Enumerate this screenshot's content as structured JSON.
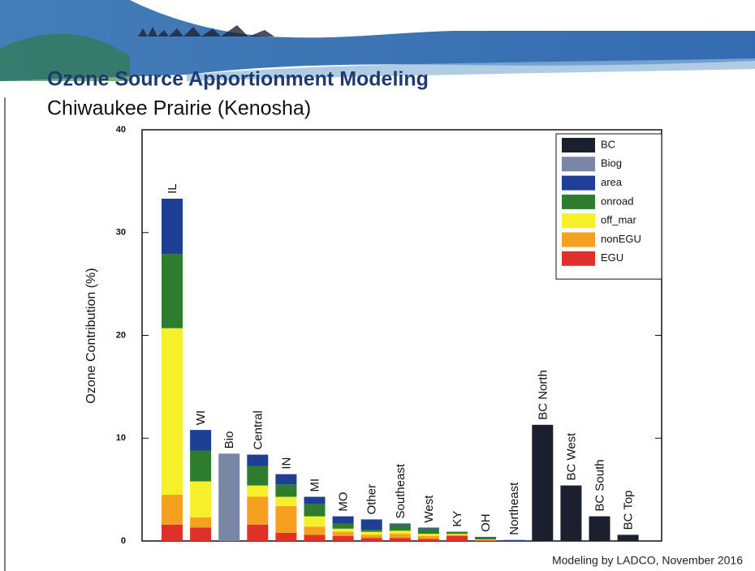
{
  "chart_data": {
    "type": "stacked-bar",
    "title": "Ozone Source Apportionment Modeling",
    "subtitle": "Chiwaukee Prairie (Kenosha)",
    "y_label": "Ozone Contribution (%)",
    "footer": "Modeling by LADCO, November 2016",
    "categories": [
      "IL",
      "WI",
      "Bio",
      "Central",
      "IN",
      "MI",
      "MO",
      "Other",
      "Southeast",
      "West",
      "KY",
      "OH",
      "Northeast",
      "BC North",
      "BC West",
      "BC South",
      "BC Top"
    ],
    "series": [
      {
        "name": "EGU",
        "color": "#e0302a",
        "values": [
          1.6,
          1.3,
          0,
          1.6,
          0.8,
          0.6,
          0.5,
          0.3,
          0.3,
          0.2,
          0.5,
          0.05,
          0,
          0,
          0,
          0,
          0
        ]
      },
      {
        "name": "nonEGU",
        "color": "#f5a020",
        "values": [
          2.9,
          1.0,
          0,
          2.7,
          2.6,
          0.8,
          0.4,
          0.3,
          0.4,
          0.3,
          0.1,
          0.05,
          0,
          0,
          0,
          0,
          0
        ]
      },
      {
        "name": "off_mar",
        "color": "#f5f02a",
        "values": [
          16.2,
          3.5,
          0,
          1.1,
          0.9,
          1.0,
          0.3,
          0.3,
          0.3,
          0.2,
          0.1,
          0.05,
          0,
          0,
          0,
          0,
          0
        ]
      },
      {
        "name": "onroad",
        "color": "#2e7d2e",
        "values": [
          7.2,
          3.0,
          0,
          1.9,
          1.2,
          1.2,
          0.5,
          0.2,
          0.6,
          0.5,
          0.2,
          0.2,
          0,
          0,
          0,
          0,
          0
        ]
      },
      {
        "name": "area",
        "color": "#1f3f96",
        "values": [
          5.4,
          2.0,
          0,
          1.1,
          1.0,
          0.7,
          0.7,
          1.0,
          0.1,
          0.1,
          0,
          0.05,
          0.1,
          0,
          0,
          0,
          0
        ]
      },
      {
        "name": "Biog",
        "color": "#7a86a6",
        "values": [
          0,
          0,
          8.5,
          0,
          0,
          0,
          0,
          0,
          0,
          0,
          0,
          0,
          0,
          0,
          0,
          0,
          0
        ]
      },
      {
        "name": "BC",
        "color": "#1c1f2e",
        "values": [
          0,
          0,
          0,
          0,
          0,
          0,
          0,
          0,
          0,
          0,
          0,
          0,
          0,
          11.3,
          5.4,
          2.4,
          0.6
        ]
      }
    ],
    "ylim": [
      0,
      40
    ],
    "yticks": [
      0,
      10,
      20,
      30,
      40
    ]
  }
}
